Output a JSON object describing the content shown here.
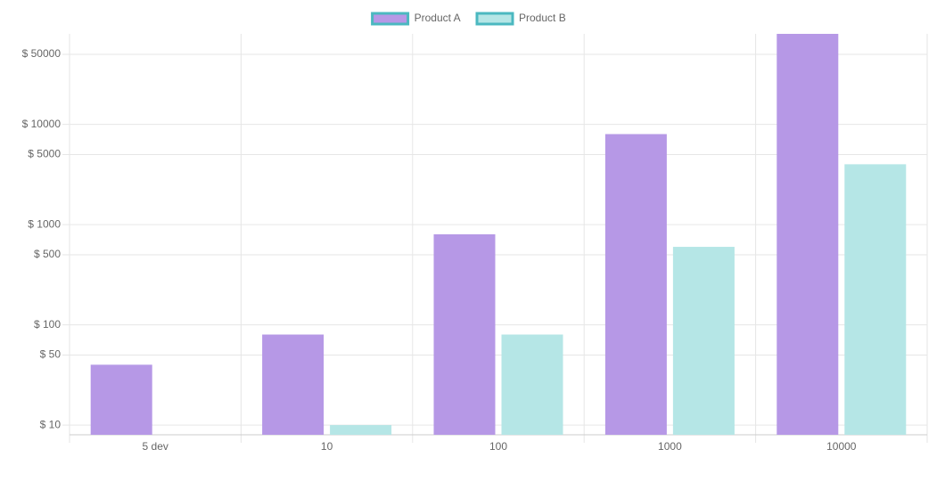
{
  "chart_data": {
    "type": "bar",
    "log_scale": true,
    "grid": true,
    "categories": [
      "5 dev",
      "10",
      "100",
      "1000",
      "10000"
    ],
    "series": [
      {
        "name": "Product A",
        "color": "#b698e6",
        "values": [
          40,
          80,
          800,
          8000,
          80000
        ]
      },
      {
        "name": "Product B",
        "color": "#b5e6e6",
        "values": [
          null,
          10,
          80,
          600,
          4000
        ]
      }
    ],
    "ylim": [
      8,
      80000
    ],
    "yticks": [
      {
        "value": 10,
        "label": "$ 10"
      },
      {
        "value": 50,
        "label": "$ 50"
      },
      {
        "value": 100,
        "label": "$ 100"
      },
      {
        "value": 500,
        "label": "$ 500"
      },
      {
        "value": 1000,
        "label": "$ 1000"
      },
      {
        "value": 5000,
        "label": "$ 5000"
      },
      {
        "value": 10000,
        "label": "$ 10000"
      },
      {
        "value": 50000,
        "label": "$ 50000"
      }
    ],
    "legend": "top"
  }
}
